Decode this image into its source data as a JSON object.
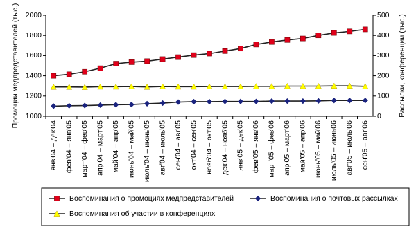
{
  "chart_data": {
    "type": "line",
    "y_label": "Промоции медпредставителей (тыс.)",
    "y2_label": "Рассылки, конференции (тыс.)",
    "categories": [
      "янв'04 – дек'04",
      "фев'04 – янв'05",
      "март'04 – фев'05",
      "апр'04 – март'05",
      "май'04 – апр'05",
      "июнь'04 – май'05",
      "июль'04 – июнь'05",
      "авг'04 – июль'05",
      "сен'04 – авг'05",
      "окт'04 – сен'05",
      "нояб'04 – окт'05",
      "дек'04 – нояб'05",
      "янв'05 – дек'05",
      "фев'05 – янв'06",
      "март'05 – фев'06",
      "апр'05 – март'06",
      "май'05 – апр'06",
      "июнь'05 – май'06",
      "июль'05 – июнь06",
      "авг'05 – июль'06",
      "сен'05 – авг'06"
    ],
    "series": [
      {
        "name": "Воспоминания о промоциях медпредставителей",
        "color": "#e0001a",
        "marker": "square",
        "values": [
          1400,
          1415,
          1440,
          1475,
          1520,
          1535,
          1545,
          1565,
          1585,
          1605,
          1620,
          1645,
          1670,
          1710,
          1735,
          1755,
          1770,
          1800,
          1825,
          1840,
          1860
        ]
      },
      {
        "name": "Воспоминания о почтовых рассылках",
        "color": "#1a237e",
        "marker": "diamond",
        "axis": "y2",
        "values": [
          50,
          52,
          53,
          55,
          57,
          58,
          62,
          65,
          70,
          72,
          72,
          73,
          73,
          73,
          75,
          75,
          75,
          76,
          78,
          78,
          78
        ]
      },
      {
        "name": "Воспоминания об участии в конференциях",
        "color": "#ffff00",
        "marker": "triangle",
        "axis": "y2",
        "values": [
          145,
          145,
          144,
          146,
          146,
          147,
          145,
          147,
          146,
          146,
          147,
          147,
          147,
          148,
          148,
          149,
          149,
          149,
          150,
          150,
          148
        ]
      }
    ],
    "ylim": [
      1000,
      2000
    ],
    "yticks": [
      1000,
      1200,
      1400,
      1600,
      1800,
      2000
    ],
    "y2lim": [
      0,
      500
    ],
    "y2ticks": [
      0,
      100,
      200,
      300,
      400,
      500
    ],
    "grid": false
  }
}
